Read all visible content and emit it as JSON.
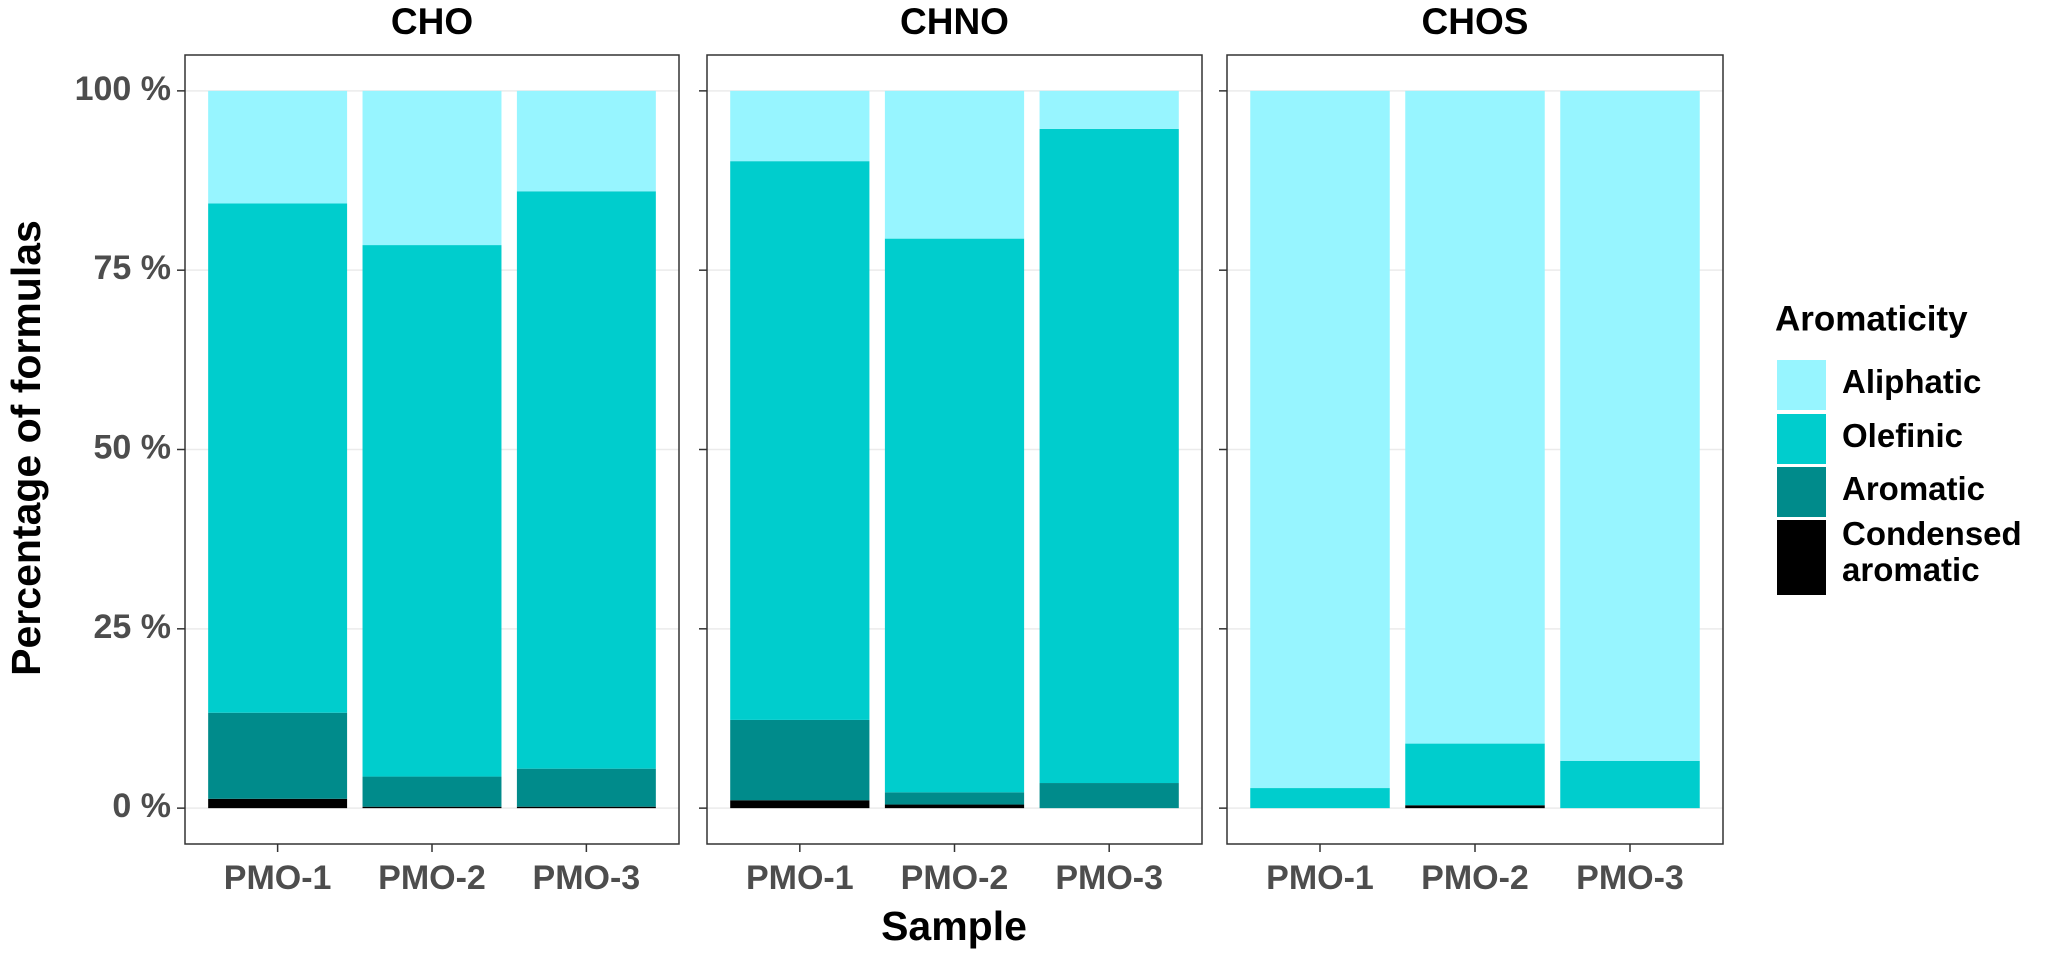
{
  "chart_data": [
    {
      "type": "bar",
      "stacked": true,
      "title": "CHO",
      "ylabel": "Percentage of formulas",
      "xlabel": "Sample",
      "legend_title": "Aromaticity",
      "legend": "right",
      "grid": true,
      "categories": [
        "PMO-1",
        "PMO-2",
        "PMO-3"
      ],
      "ylim": [
        -5,
        105
      ],
      "yticks": [
        {
          "value": 0,
          "label": "0 %"
        },
        {
          "value": 25,
          "label": "25 %"
        },
        {
          "value": 50,
          "label": "50 %"
        },
        {
          "value": 75,
          "label": "75 %"
        },
        {
          "value": 100,
          "label": "100 %"
        }
      ],
      "series": [
        {
          "name": "Aliphatic",
          "color": "#97f5ff",
          "values": [
            15.7,
            21.5,
            14.0
          ]
        },
        {
          "name": "Olefinic",
          "color": "#00cdcd",
          "values": [
            71.0,
            74.1,
            80.5
          ]
        },
        {
          "name": "Aromatic",
          "color": "#008b8b",
          "values": [
            12.0,
            4.2,
            5.3
          ]
        },
        {
          "name": "Condensed aromatic",
          "color": "#000000",
          "values": [
            1.3,
            0.2,
            0.2
          ]
        }
      ]
    },
    {
      "type": "bar",
      "stacked": true,
      "title": "CHNO",
      "categories": [
        "PMO-1",
        "PMO-2",
        "PMO-3"
      ],
      "ylim": [
        -5,
        105
      ],
      "yticks": [
        0,
        25,
        50,
        75,
        100
      ],
      "series": [
        {
          "values": [
            9.8,
            20.6,
            5.3
          ]
        },
        {
          "values": [
            77.9,
            77.2,
            91.2
          ]
        },
        {
          "values": [
            11.2,
            1.7,
            3.5
          ]
        },
        {
          "values": [
            1.1,
            0.5,
            0
          ]
        }
      ]
    },
    {
      "type": "bar",
      "stacked": true,
      "title": "CHOS",
      "categories": [
        "PMO-1",
        "PMO-2",
        "PMO-3"
      ],
      "ylim": [
        -5,
        105
      ],
      "yticks": [
        0,
        25,
        50,
        75,
        100
      ],
      "series": [
        {
          "values": [
            97.2,
            91.0,
            93.4
          ]
        },
        {
          "values": [
            2.8,
            8.6,
            6.6
          ]
        },
        {
          "values": [
            0,
            0,
            0
          ]
        },
        {
          "values": [
            0,
            0.4,
            0
          ]
        }
      ]
    }
  ]
}
